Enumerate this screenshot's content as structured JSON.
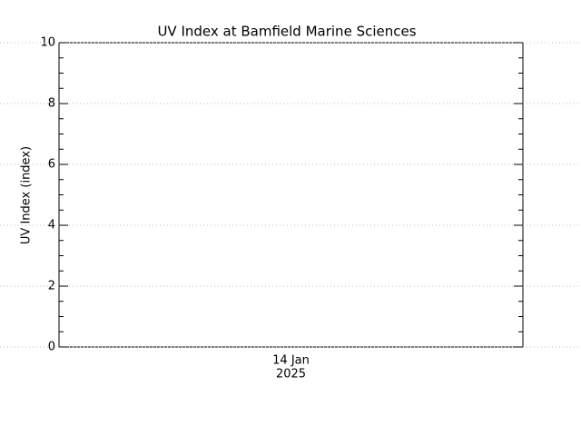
{
  "chart_data": {
    "type": "line",
    "title": "UV Index at Bamfield Marine Sciences",
    "y_label": "UV Index (index)",
    "categories": [
      [
        "14 Jan",
        "2025"
      ]
    ],
    "values": [
      null
    ],
    "color": "#000000",
    "ylim": [
      0,
      10
    ],
    "yticks": [
      0,
      2,
      4,
      6,
      8,
      10
    ],
    "grid": true
  }
}
